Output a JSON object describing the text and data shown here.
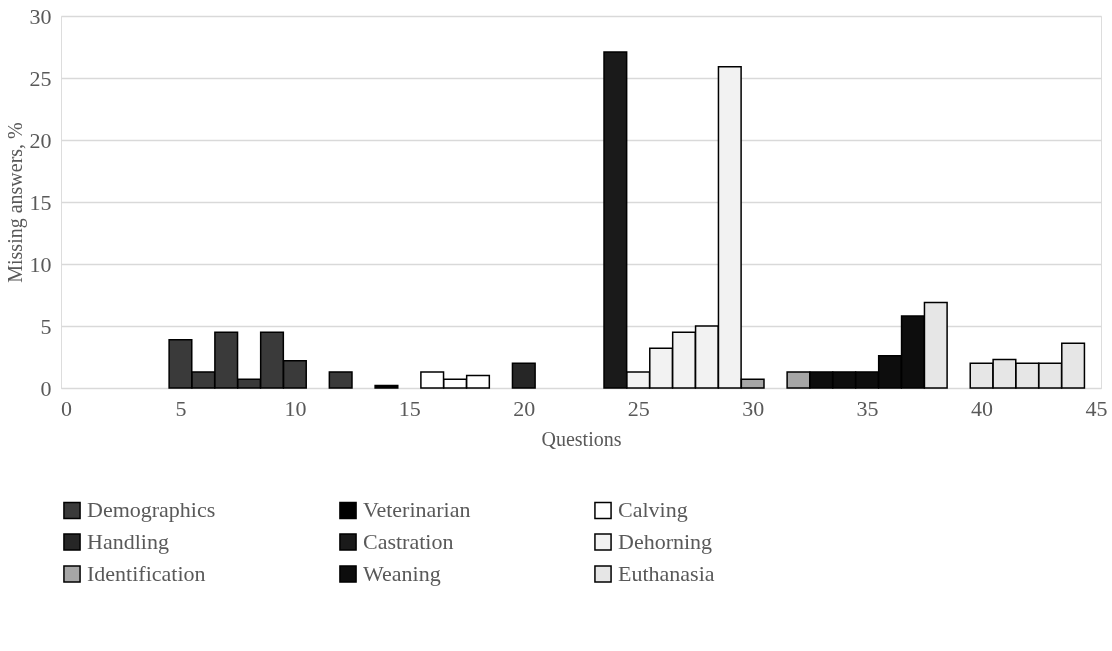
{
  "chart_data": {
    "type": "bar",
    "xlabel": "Questions",
    "ylabel": "Missing answers, %",
    "xlim": [
      0,
      45
    ],
    "xticks": [
      0,
      5,
      10,
      15,
      20,
      25,
      30,
      35,
      40,
      45
    ],
    "ylim": [
      0,
      30
    ],
    "yticks": [
      0,
      5,
      10,
      15,
      20,
      25,
      30
    ],
    "grid": "y",
    "legend": "bottom",
    "series": [
      {
        "name": "Demographics",
        "color": "#3a3a3a",
        "x": [
          5,
          6,
          7,
          8,
          9,
          10,
          12
        ],
        "values": [
          3.9,
          1.3,
          4.5,
          0.7,
          4.5,
          2.2,
          1.3
        ]
      },
      {
        "name": "Veterinarian",
        "color": "#000000",
        "x": [
          14
        ],
        "values": [
          0.2
        ]
      },
      {
        "name": "Calving",
        "color": "#ffffff",
        "x": [
          16,
          17,
          18
        ],
        "values": [
          1.3,
          0.7,
          1.0
        ]
      },
      {
        "name": "Handling",
        "color": "#262626",
        "x": [
          20
        ],
        "values": [
          2.0
        ]
      },
      {
        "name": "Castration",
        "color": "#1a1a1a",
        "x": [
          24
        ],
        "values": [
          27.1
        ]
      },
      {
        "name": "Dehorning",
        "color": "#f2f2f2",
        "x": [
          25,
          26,
          27,
          28,
          29
        ],
        "values": [
          1.3,
          3.2,
          4.5,
          5.0,
          25.9
        ]
      },
      {
        "name": "Identification",
        "color": "#a6a6a6",
        "x": [
          30,
          32
        ],
        "values": [
          0.7,
          1.3
        ]
      },
      {
        "name": "Weaning",
        "color": "#0d0d0d",
        "x": [
          33,
          34,
          35,
          36,
          37
        ],
        "values": [
          1.3,
          1.3,
          1.3,
          2.6,
          5.8
        ]
      },
      {
        "name": "Euthanasia",
        "color": "#e6e6e6",
        "x": [
          38,
          40,
          41,
          42,
          43,
          44
        ],
        "values": [
          6.9,
          2.0,
          2.3,
          2.0,
          2.0,
          3.6
        ]
      }
    ]
  }
}
